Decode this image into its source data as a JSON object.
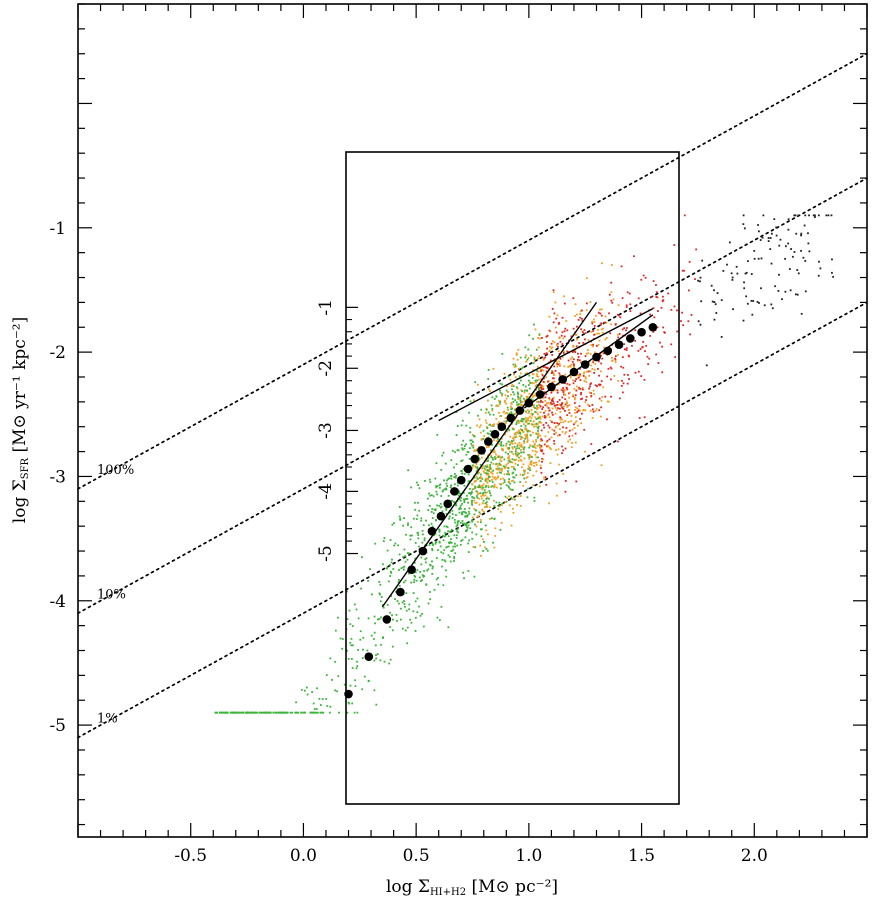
{
  "chart_data": {
    "type": "scatter",
    "xlabel": "log Σ",
    "xlabel_sub": "HI+H2",
    "xlabel_unit": "[M⊙ pc⁻²]",
    "ylabel": "log Σ",
    "ylabel_sub": "SFR",
    "ylabel_unit": "[M⊙ yr⁻¹ kpc⁻²]",
    "xlim": [
      -1.0,
      2.5
    ],
    "ylim": [
      -5.9,
      0.8
    ],
    "x_ticks": [
      "-0.5",
      "0.0",
      "0.5",
      "1.0",
      "1.5",
      "2.0"
    ],
    "y_ticks": [
      "-1",
      "-2",
      "-3",
      "-4",
      "-5"
    ],
    "grid": false,
    "efficiency_lines": [
      {
        "label": "100%",
        "log_sfr_at_log_gas_0": -2.1
      },
      {
        "label": "10%",
        "log_sfr_at_log_gas_0": -3.1
      },
      {
        "label": "1%",
        "log_sfr_at_log_gas_0": -4.1
      }
    ],
    "scatter_colors": {
      "low": "#3cb43c",
      "mid": "#f0a020",
      "high": "#dc2828",
      "top": "#202020"
    },
    "binned_median": {
      "x": [
        0.2,
        0.29,
        0.37,
        0.43,
        0.48,
        0.53,
        0.57,
        0.61,
        0.64,
        0.67,
        0.7,
        0.73,
        0.76,
        0.79,
        0.82,
        0.85,
        0.88,
        0.92,
        0.96,
        1.0,
        1.05,
        1.1,
        1.15,
        1.2,
        1.25,
        1.3,
        1.35,
        1.4,
        1.45,
        1.5,
        1.55
      ],
      "y": [
        -4.75,
        -4.45,
        -4.15,
        -3.93,
        -3.75,
        -3.6,
        -3.44,
        -3.32,
        -3.22,
        -3.12,
        -3.03,
        -2.94,
        -2.86,
        -2.79,
        -2.72,
        -2.66,
        -2.6,
        -2.53,
        -2.47,
        -2.41,
        -2.34,
        -2.28,
        -2.22,
        -2.16,
        -2.1,
        -2.04,
        -1.99,
        -1.94,
        -1.89,
        -1.84,
        -1.8
      ]
    },
    "fit_lines": [
      {
        "x": [
          0.35,
          1.3
        ],
        "y": [
          -4.05,
          -1.6
        ]
      },
      {
        "x": [
          0.6,
          1.55
        ],
        "y": [
          -2.55,
          -1.65
        ]
      },
      {
        "x": [
          0.98,
          1.55
        ],
        "y": [
          -2.45,
          -1.7
        ]
      }
    ],
    "inset": {
      "y_ticks": [
        "-1",
        "-2",
        "-3",
        "-4",
        "-5"
      ],
      "y_tick_values": [
        -1,
        -2,
        -3,
        -4,
        -5
      ],
      "y_tick_main_values": [
        -1.64,
        -2.13,
        -2.63,
        -3.12,
        -3.62
      ]
    }
  }
}
